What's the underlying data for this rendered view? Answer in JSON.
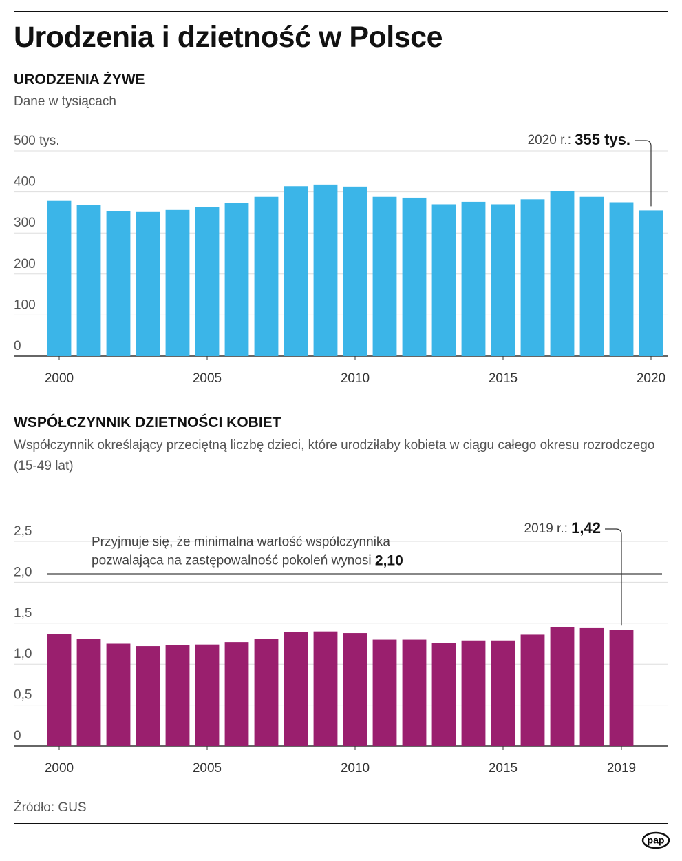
{
  "title": "Urodzenia i dzietność w Polsce",
  "source": "Źródło: GUS",
  "logo": "pap",
  "chart_data": [
    {
      "type": "bar",
      "title": "URODZENIA ŻYWE",
      "subtitle": "Dane w tysiącach",
      "x": [
        2000,
        2001,
        2002,
        2003,
        2004,
        2005,
        2006,
        2007,
        2008,
        2009,
        2010,
        2011,
        2012,
        2013,
        2014,
        2015,
        2016,
        2017,
        2018,
        2019,
        2020
      ],
      "values": [
        378,
        368,
        354,
        351,
        356,
        364,
        374,
        388,
        414,
        418,
        413,
        388,
        386,
        370,
        376,
        370,
        382,
        402,
        388,
        375,
        355
      ],
      "color": "#3bb5e8",
      "xlim": [
        1999.5,
        2020.5
      ],
      "xticks": [
        2000,
        2005,
        2010,
        2015,
        2020
      ],
      "ylim": [
        0,
        500
      ],
      "yticks": [
        0,
        100,
        200,
        300,
        400,
        {
          "value": 500,
          "label": "500 tys."
        }
      ],
      "grid": true,
      "annotation": {
        "label": "2020 r.:",
        "value_label": "355 tys."
      }
    },
    {
      "type": "bar",
      "title": "WSPÓŁCZYNNIK DZIETNOŚCI KOBIET",
      "subtitle": "Współczynnik określający przeciętną liczbę dzieci, które urodziłaby kobieta w ciągu całego okresu rozrodczego (15-49 lat)",
      "x": [
        2000,
        2001,
        2002,
        2003,
        2004,
        2005,
        2006,
        2007,
        2008,
        2009,
        2010,
        2011,
        2012,
        2013,
        2014,
        2015,
        2016,
        2017,
        2018,
        2019
      ],
      "values": [
        1.37,
        1.31,
        1.25,
        1.22,
        1.23,
        1.24,
        1.27,
        1.31,
        1.39,
        1.4,
        1.38,
        1.3,
        1.3,
        1.26,
        1.29,
        1.29,
        1.36,
        1.45,
        1.44,
        1.42
      ],
      "value_labels": [
        null,
        null,
        null,
        null,
        null,
        null,
        null,
        null,
        null,
        null,
        null,
        null,
        null,
        null,
        null,
        null,
        null,
        null,
        null,
        "1,42"
      ],
      "color": "#9a1f6e",
      "xlim": [
        1999.5,
        2020.5
      ],
      "xticks": [
        2000,
        2005,
        2010,
        2015,
        2019
      ],
      "ylim": [
        0,
        2.5
      ],
      "yticks": [
        0,
        {
          "value": 0.5,
          "label": "0,5"
        },
        {
          "value": 1,
          "label": "1,0"
        },
        {
          "value": 1.5,
          "label": "1,5"
        },
        {
          "value": 2,
          "label": "2,0"
        },
        {
          "value": 2.5,
          "label": "2,5"
        }
      ],
      "grid": true,
      "annotation": {
        "label": "2019 r.:",
        "index": 19
      },
      "reference_line": {
        "value": 2.1,
        "label": "2,10",
        "text_lines": [
          "Przyjmuje się, że minimalna wartość współczynnika",
          "pozwalająca na zastępowalność pokoleń wynosi"
        ]
      }
    }
  ]
}
